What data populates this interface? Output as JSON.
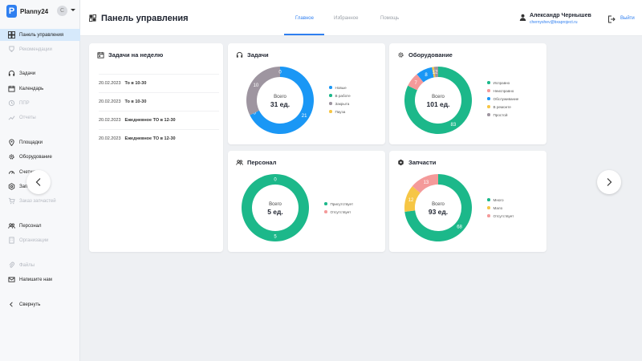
{
  "app": {
    "logo_letter": "P",
    "name": "Planny24",
    "avatar_initial": "С"
  },
  "sidebar": {
    "items": [
      {
        "label": "Панель управления",
        "icon": "dashboard-icon",
        "state": "active"
      },
      {
        "label": "Рекомендации",
        "icon": "trophy-icon",
        "state": "disabled"
      },
      {
        "label": "Задачи",
        "icon": "headset-icon",
        "state": "normal"
      },
      {
        "label": "Календарь",
        "icon": "calendar-icon",
        "state": "normal"
      },
      {
        "label": "ППР",
        "icon": "history-icon",
        "state": "disabled"
      },
      {
        "label": "Отчеты",
        "icon": "chart-line-icon",
        "state": "disabled"
      },
      {
        "label": "Площадки",
        "icon": "location-icon",
        "state": "normal"
      },
      {
        "label": "Оборудование",
        "icon": "gear-icon",
        "state": "normal"
      },
      {
        "label": "Счетчики",
        "icon": "gauge-icon",
        "state": "normal"
      },
      {
        "label": "Запчасти",
        "icon": "nut-icon",
        "state": "normal"
      },
      {
        "label": "Заказ запчастей",
        "icon": "cart-icon",
        "state": "disabled"
      },
      {
        "label": "Персонал",
        "icon": "people-icon",
        "state": "normal"
      },
      {
        "label": "Организации",
        "icon": "building-icon",
        "state": "disabled"
      },
      {
        "label": "Файлы",
        "icon": "paperclip-icon",
        "state": "disabled"
      },
      {
        "label": "Напишите нам",
        "icon": "mail-icon",
        "state": "normal"
      },
      {
        "label": "Свернуть",
        "icon": "chevron-left-icon",
        "state": "normal"
      }
    ]
  },
  "header": {
    "title": "Панель управления",
    "tabs": [
      "Главное",
      "Избранное",
      "Помощь"
    ],
    "active_tab": "Главное",
    "user_name": "Александр Чернышев",
    "user_email": "chernyshev@bxaproject.ru",
    "logout_label": "Выйти"
  },
  "week_tasks": {
    "title": "Задачи на неделю",
    "rows": [
      {
        "date": "20.02.2023",
        "task": "То в 10-30"
      },
      {
        "date": "20.02.2023",
        "task": "То в 10-30"
      },
      {
        "date": "20.02.2023",
        "task": "Ежедневное ТО в 12-30"
      },
      {
        "date": "20.02.2023",
        "task": "Ежедневное ТО в 12-30"
      }
    ]
  },
  "chart_data": [
    {
      "type": "pie",
      "id": "tasks",
      "title": "Задачи",
      "center_label": "Всего",
      "center_value": "31 ед.",
      "categories": [
        "Новые",
        "В работе",
        "Закрыта",
        "Пауза"
      ],
      "values": [
        21,
        0,
        10,
        0
      ],
      "colors": [
        "#1a97f5",
        "#1cb88a",
        "#9e95a0",
        "#f6c645"
      ]
    },
    {
      "type": "pie",
      "id": "equipment",
      "title": "Оборудование",
      "center_label": "Всего",
      "center_value": "101 ед.",
      "categories": [
        "Исправно",
        "Неисправно",
        "Обслуживание",
        "В ремонте",
        "Простой"
      ],
      "values": [
        83,
        7,
        8,
        1,
        2
      ],
      "colors": [
        "#1cb88a",
        "#f49a9a",
        "#1a97f5",
        "#f6c645",
        "#9e95a0"
      ]
    },
    {
      "type": "pie",
      "id": "staff",
      "title": "Персонал",
      "center_label": "Всего",
      "center_value": "5 ед.",
      "categories": [
        "Присутствует",
        "Отсутствует"
      ],
      "values": [
        5,
        0
      ],
      "colors": [
        "#1cb88a",
        "#f49a9a"
      ]
    },
    {
      "type": "pie",
      "id": "parts",
      "title": "Запчасти",
      "center_label": "Всего",
      "center_value": "93 ед.",
      "categories": [
        "Много",
        "Мало",
        "Отсутствует"
      ],
      "values": [
        68,
        12,
        13
      ],
      "colors": [
        "#1cb88a",
        "#f6c645",
        "#f49a9a"
      ]
    }
  ]
}
